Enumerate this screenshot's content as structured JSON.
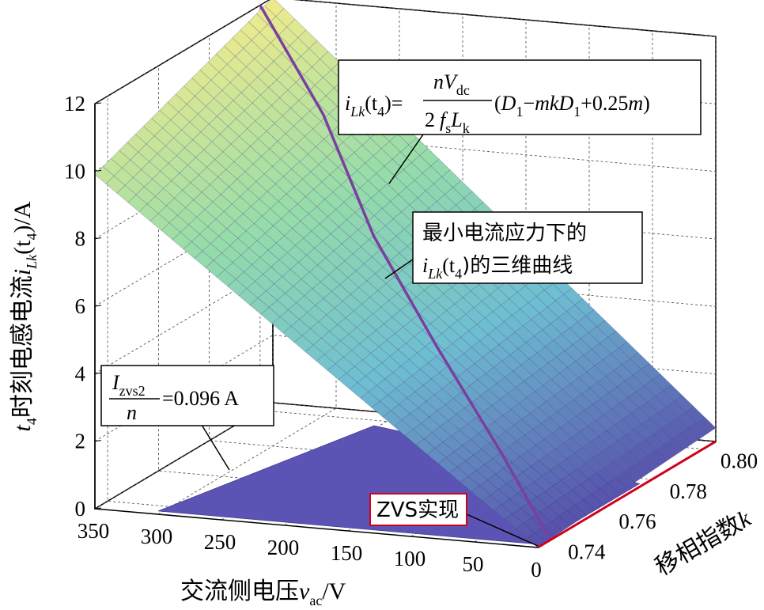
{
  "chart_data": {
    "type": "surface3d",
    "x_axis": {
      "label": "交流侧电压",
      "var": "v",
      "var_sub": "ac",
      "unit": "/V",
      "ticks": [
        "350",
        "300",
        "250",
        "200",
        "150",
        "100",
        "50",
        "0"
      ],
      "range": [
        0,
        350
      ]
    },
    "y_axis": {
      "label": "移相指数",
      "var": "k",
      "ticks": [
        "0.74",
        "0.76",
        "0.78",
        "0.80"
      ],
      "range": [
        0.735,
        0.805
      ]
    },
    "z_axis": {
      "label_prefix_var": "t",
      "label_prefix_sub": "4",
      "label": "时刻电流",
      "label_mid": "电感电流",
      "var": "i",
      "var_sub": "Lk",
      "arg": "(t",
      "arg_sub": "4",
      "arg_end": ")/A",
      "ticks": [
        "0",
        "2",
        "4",
        "6",
        "8",
        "10",
        "12"
      ],
      "range": [
        0,
        12
      ]
    },
    "surfaces": [
      {
        "name": "current_surface",
        "corners_z": {
          "v350_k074": 9.9,
          "v350_k080": 12.0,
          "v0_k074": 0.0,
          "v0_k080": 0.4
        }
      },
      {
        "name": "zvs_plane",
        "z": 0.096
      }
    ],
    "curve": {
      "name": "min_current_stress",
      "points": [
        {
          "v": 0,
          "k": 0.74,
          "z": 0.0
        },
        {
          "v": 60,
          "k": 0.75,
          "z": 2.0
        },
        {
          "v": 130,
          "k": 0.76,
          "z": 4.4
        },
        {
          "v": 200,
          "k": 0.77,
          "z": 7.0
        },
        {
          "v": 270,
          "k": 0.785,
          "z": 9.7
        },
        {
          "v": 350,
          "k": 0.8,
          "z": 12.0
        }
      ]
    },
    "grid": true
  },
  "annotations": {
    "formula": {
      "lhs_i": "i",
      "lhs_sub": "Lk",
      "lhs_arg": "(t",
      "lhs_arg_sub": "4",
      "lhs_end": ")=",
      "num_n": "n",
      "num_V": "V",
      "num_sub": "dc",
      "den_2": "2",
      "den_f": "f",
      "den_fs": "s",
      "den_L": "L",
      "den_Lk": "k",
      "rhs_open": "(",
      "rhs_D1": "D",
      "rhs_D1_sub": "1",
      "rhs_minus": "−",
      "rhs_mk": "mkD",
      "rhs_mk_sub": "1",
      "rhs_plus": "+0.25",
      "rhs_m": "m",
      "rhs_close": ")"
    },
    "curve_label": {
      "line1": "最小电流应力下的",
      "line2_i": "i",
      "line2_sub": "Lk",
      "line2_arg": "(t",
      "line2_arg_sub": "4",
      "line2_end": ")的三维曲线"
    },
    "izvs": {
      "I": "I",
      "sub": "zvs2",
      "den": "n",
      "value": "=0.096 A"
    },
    "zvs": {
      "text": "ZVS实现"
    }
  }
}
